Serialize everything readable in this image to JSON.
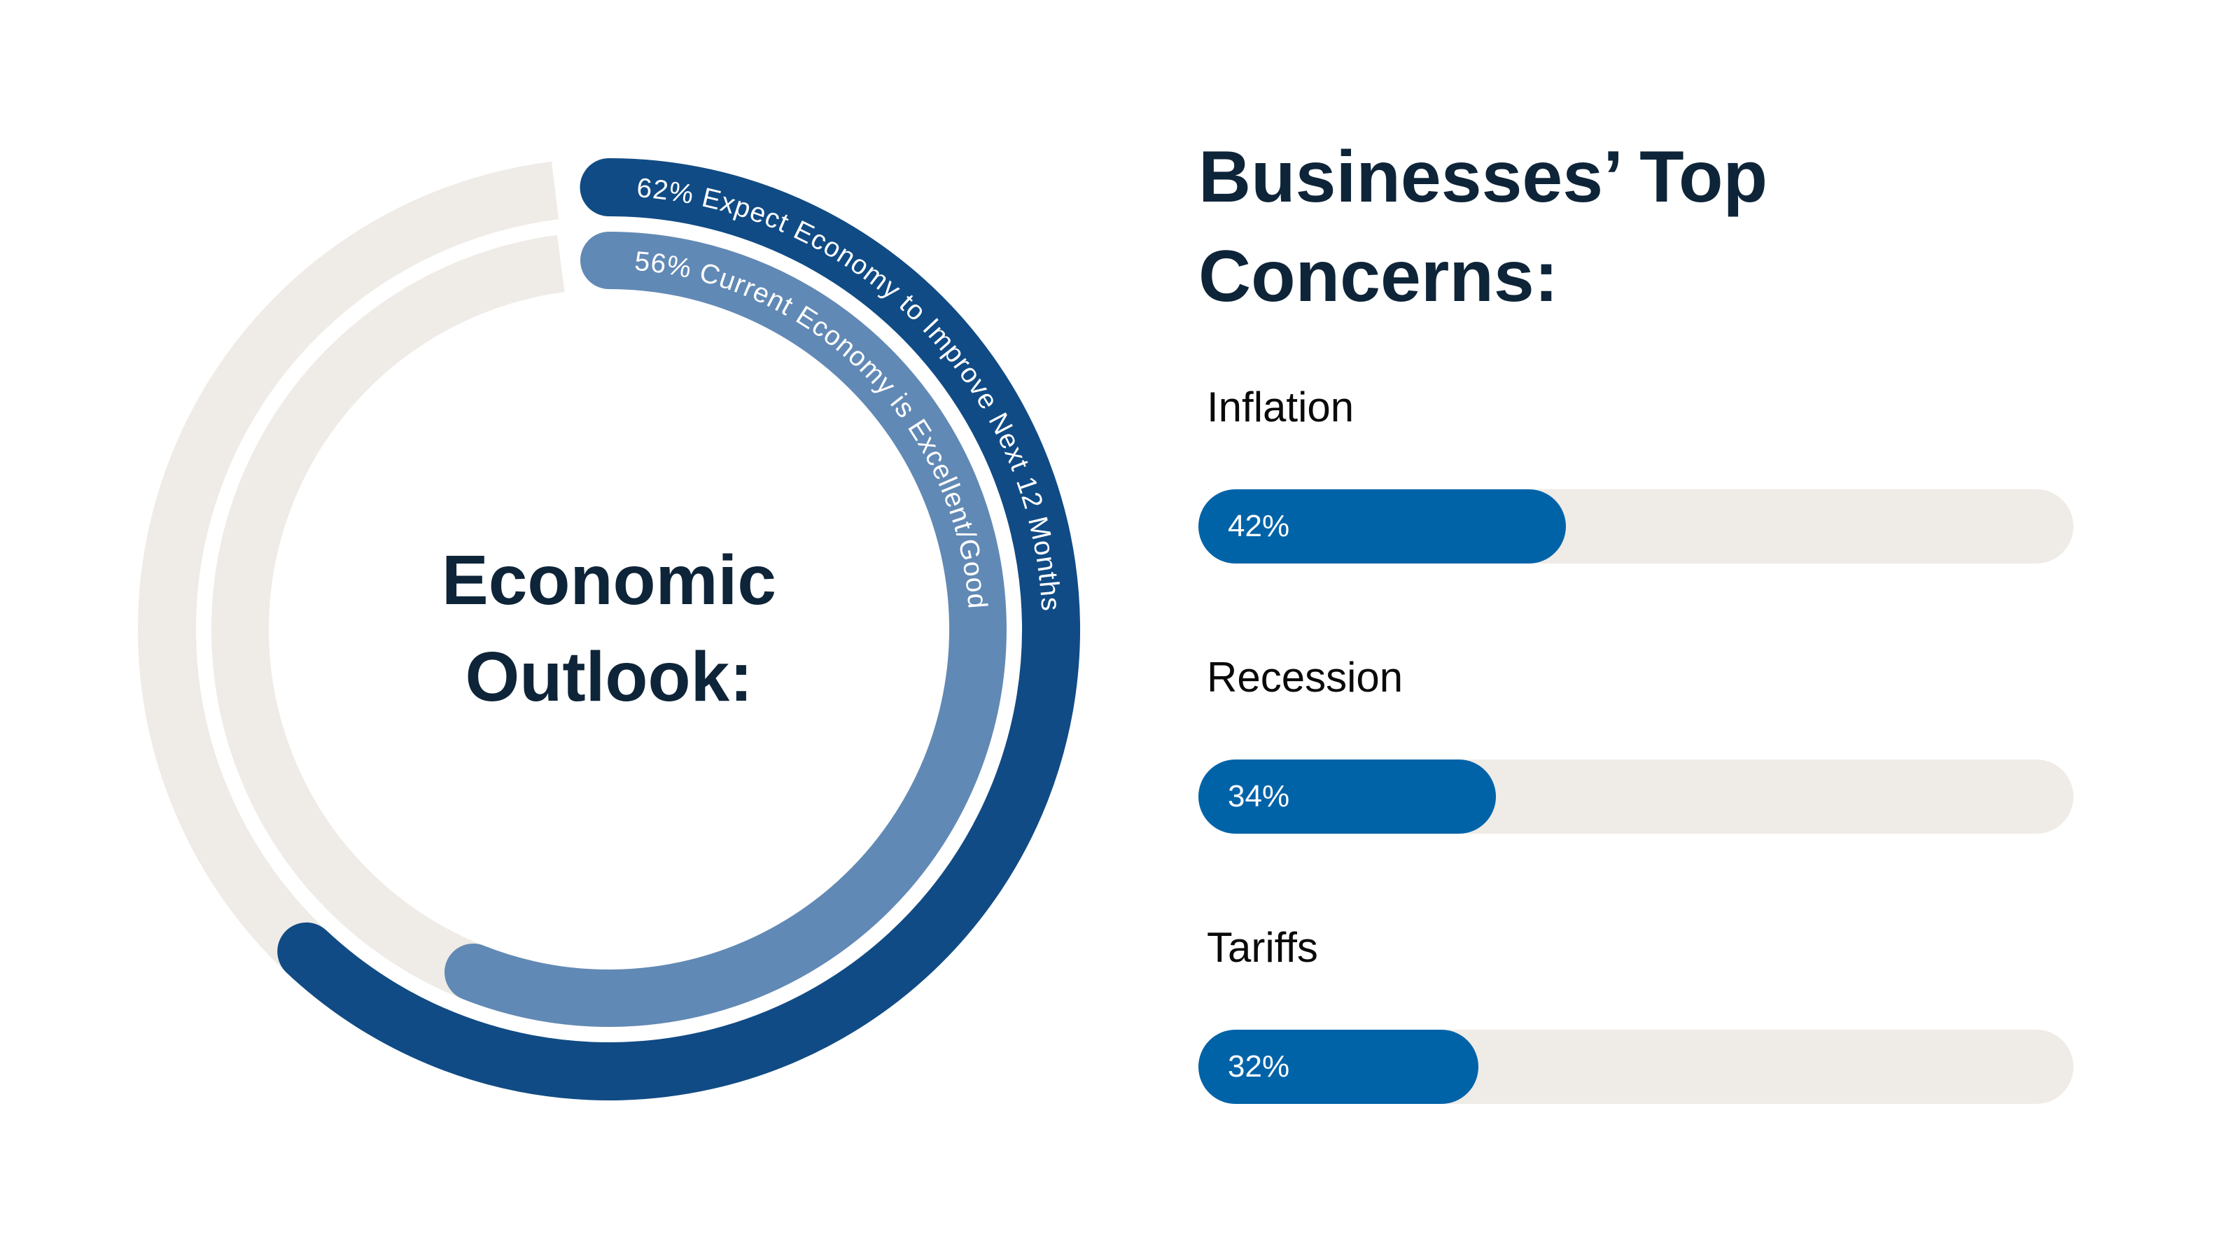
{
  "donut": {
    "center_title_lines": [
      "Economic",
      "Outlook:"
    ],
    "title_color": "#0e2438",
    "track_color": "#efebe7",
    "arc_text_color": "#ffffff",
    "arcs": [
      {
        "pct": 62,
        "color": "#104b85",
        "label_on_arc": "62% Expect Economy to Improve Next 12 Months"
      },
      {
        "pct": 56,
        "color": "#6189b5",
        "label_on_arc": "56% Current Economy is Excellent/Good"
      }
    ]
  },
  "concerns": {
    "heading_lines": [
      "Businesses’ Top",
      "Concerns:"
    ],
    "heading_color": "#0e2438",
    "label_color": "#0a0a0a",
    "fill_color": "#0063a8",
    "track_color": "#efebe7",
    "value_text_color": "#ffffff",
    "bars": [
      {
        "label": "Inflation",
        "pct": 42,
        "value_label": "42%"
      },
      {
        "label": "Recession",
        "pct": 34,
        "value_label": "34%"
      },
      {
        "label": "Tariffs",
        "pct": 32,
        "value_label": "32%"
      }
    ]
  },
  "chart_data": [
    {
      "type": "radial-progress",
      "title": "Economic Outlook:",
      "units": "%",
      "range": [
        0,
        100
      ],
      "start_angle": "12 o'clock",
      "direction": "clockwise",
      "series": [
        {
          "name": "Expect Economy to Improve Next 12 Months",
          "value": 62,
          "ring": "outer",
          "color": "#104b85",
          "track_color": "#efebe7"
        },
        {
          "name": "Current Economy is Excellent/Good",
          "value": 56,
          "ring": "inner",
          "color": "#6189b5",
          "track_color": "#efebe7"
        }
      ]
    },
    {
      "type": "bar",
      "orientation": "horizontal",
      "title": "Businesses’ Top Concerns:",
      "categories": [
        "Inflation",
        "Recession",
        "Tariffs"
      ],
      "values": [
        42,
        34,
        32
      ],
      "value_labels": [
        "42%",
        "34%",
        "32%"
      ],
      "units": "%",
      "xlim": [
        0,
        100
      ],
      "grid": false,
      "legend": "none"
    }
  ]
}
